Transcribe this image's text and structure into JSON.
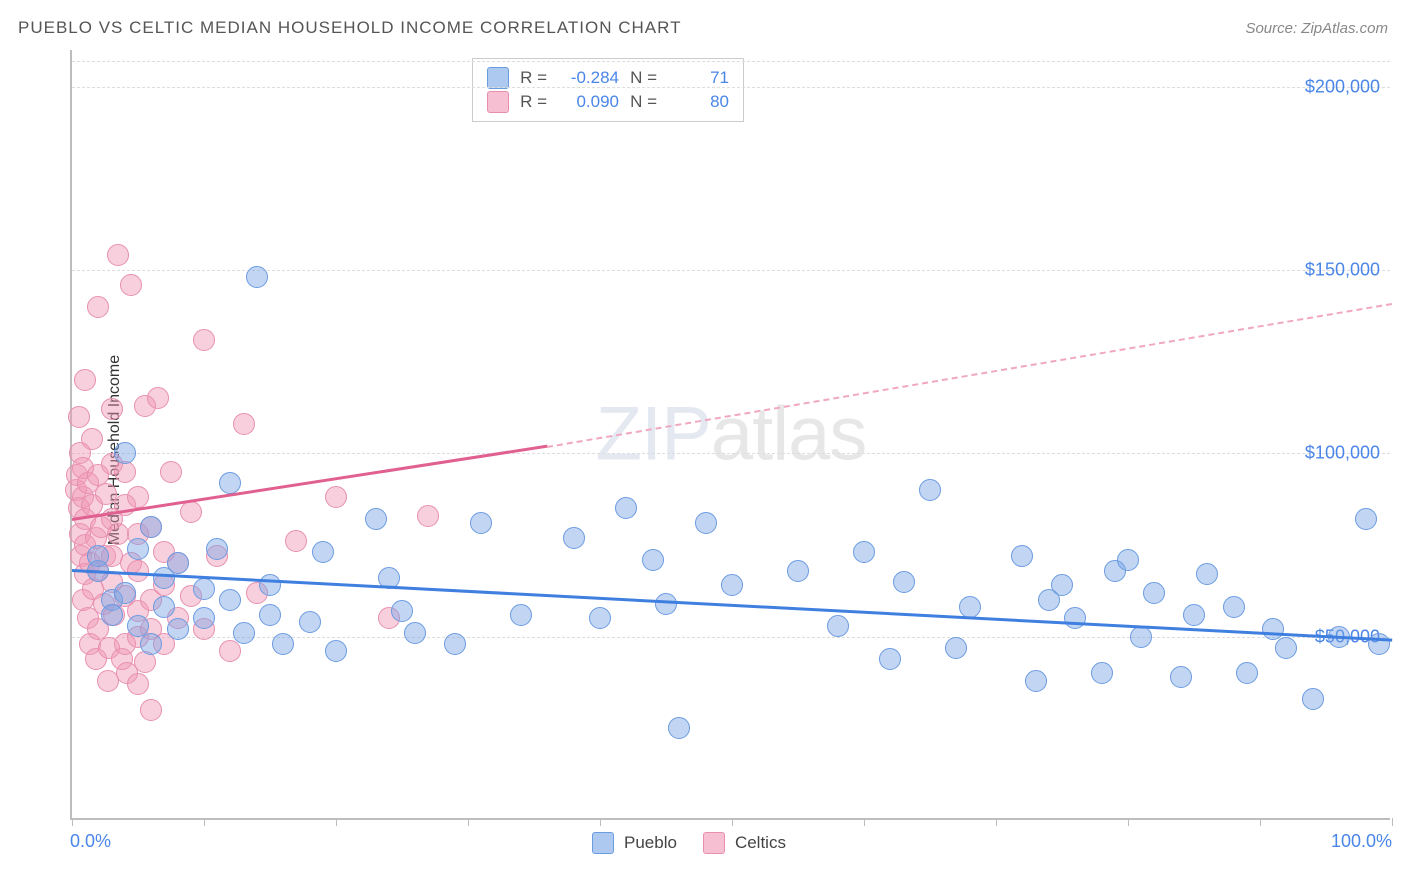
{
  "header": {
    "title": "PUEBLO VS CELTIC MEDIAN HOUSEHOLD INCOME CORRELATION CHART",
    "source": "Source: ZipAtlas.com"
  },
  "watermark": {
    "part1": "ZIP",
    "part2": "atlas"
  },
  "chart": {
    "type": "scatter",
    "ylabel": "Median Household Income",
    "background_color": "#ffffff",
    "grid_color": "#dddddd",
    "axis_color": "#bdbdbd",
    "xlim": [
      0,
      100
    ],
    "ylim": [
      0,
      210000
    ],
    "yticks": [
      50000,
      100000,
      150000,
      200000
    ],
    "ytick_labels": [
      "$50,000",
      "$100,000",
      "$150,000",
      "$200,000"
    ],
    "xtick_positions": [
      0,
      10,
      20,
      30,
      40,
      50,
      60,
      70,
      80,
      90,
      100
    ],
    "x_start_label": "0.0%",
    "x_end_label": "100.0%",
    "tick_label_color": "#4a86e8",
    "point_radius": 11,
    "point_border_width": 1,
    "series": {
      "pueblo": {
        "label": "Pueblo",
        "fill": "rgba(120,165,230,0.45)",
        "stroke": "#6b9be0",
        "R": "-0.284",
        "N": "71",
        "trend": {
          "x1": 0,
          "y1": 68000,
          "x2": 100,
          "y2": 49000,
          "color": "#3f7fe0",
          "width": 3,
          "dash": false
        },
        "points": [
          [
            2,
            68000
          ],
          [
            2,
            72000
          ],
          [
            3,
            60000
          ],
          [
            3,
            56000
          ],
          [
            4,
            100000
          ],
          [
            4,
            62000
          ],
          [
            5,
            74000
          ],
          [
            5,
            53000
          ],
          [
            6,
            48000
          ],
          [
            6,
            80000
          ],
          [
            7,
            58000
          ],
          [
            7,
            66000
          ],
          [
            8,
            52000
          ],
          [
            8,
            70000
          ],
          [
            10,
            63000
          ],
          [
            10,
            55000
          ],
          [
            11,
            74000
          ],
          [
            12,
            92000
          ],
          [
            12,
            60000
          ],
          [
            13,
            51000
          ],
          [
            14,
            148000
          ],
          [
            15,
            56000
          ],
          [
            15,
            64000
          ],
          [
            16,
            48000
          ],
          [
            18,
            54000
          ],
          [
            19,
            73000
          ],
          [
            20,
            46000
          ],
          [
            23,
            82000
          ],
          [
            24,
            66000
          ],
          [
            25,
            57000
          ],
          [
            26,
            51000
          ],
          [
            29,
            48000
          ],
          [
            31,
            81000
          ],
          [
            34,
            56000
          ],
          [
            38,
            77000
          ],
          [
            40,
            55000
          ],
          [
            42,
            85000
          ],
          [
            44,
            71000
          ],
          [
            45,
            59000
          ],
          [
            46,
            25000
          ],
          [
            48,
            81000
          ],
          [
            50,
            64000
          ],
          [
            55,
            68000
          ],
          [
            58,
            53000
          ],
          [
            60,
            73000
          ],
          [
            62,
            44000
          ],
          [
            63,
            65000
          ],
          [
            65,
            90000
          ],
          [
            67,
            47000
          ],
          [
            68,
            58000
          ],
          [
            72,
            72000
          ],
          [
            73,
            38000
          ],
          [
            74,
            60000
          ],
          [
            75,
            64000
          ],
          [
            76,
            55000
          ],
          [
            78,
            40000
          ],
          [
            79,
            68000
          ],
          [
            80,
            71000
          ],
          [
            81,
            50000
          ],
          [
            82,
            62000
          ],
          [
            84,
            39000
          ],
          [
            85,
            56000
          ],
          [
            86,
            67000
          ],
          [
            88,
            58000
          ],
          [
            89,
            40000
          ],
          [
            91,
            52000
          ],
          [
            92,
            47000
          ],
          [
            94,
            33000
          ],
          [
            96,
            50000
          ],
          [
            98,
            82000
          ],
          [
            99,
            48000
          ]
        ]
      },
      "celtics": {
        "label": "Celtics",
        "fill": "rgba(240,150,180,0.45)",
        "stroke": "#e88fb0",
        "R": "0.090",
        "N": "80",
        "trend_solid": {
          "x1": 0,
          "y1": 82000,
          "x2": 36,
          "y2": 102000,
          "color": "#e06090",
          "width": 3
        },
        "trend_dash": {
          "x1": 36,
          "y1": 102000,
          "x2": 100,
          "y2": 141000,
          "color": "#f0a8c0",
          "width": 2.5
        },
        "points": [
          [
            0.3,
            90000
          ],
          [
            0.4,
            94000
          ],
          [
            0.5,
            85000
          ],
          [
            0.5,
            110000
          ],
          [
            0.6,
            78000
          ],
          [
            0.6,
            100000
          ],
          [
            0.7,
            72000
          ],
          [
            0.8,
            88000
          ],
          [
            0.8,
            96000
          ],
          [
            0.8,
            60000
          ],
          [
            1,
            67000
          ],
          [
            1,
            75000
          ],
          [
            1,
            82000
          ],
          [
            1,
            120000
          ],
          [
            1.2,
            55000
          ],
          [
            1.2,
            92000
          ],
          [
            1.4,
            70000
          ],
          [
            1.4,
            48000
          ],
          [
            1.5,
            86000
          ],
          [
            1.5,
            104000
          ],
          [
            1.6,
            63000
          ],
          [
            1.8,
            77000
          ],
          [
            1.8,
            44000
          ],
          [
            2,
            94000
          ],
          [
            2,
            68000
          ],
          [
            2,
            52000
          ],
          [
            2,
            140000
          ],
          [
            2.2,
            80000
          ],
          [
            2.4,
            59000
          ],
          [
            2.5,
            72000
          ],
          [
            2.6,
            89000
          ],
          [
            2.7,
            38000
          ],
          [
            2.8,
            47000
          ],
          [
            3,
            97000
          ],
          [
            3,
            65000
          ],
          [
            3,
            72000
          ],
          [
            3,
            82000
          ],
          [
            3,
            112000
          ],
          [
            3.2,
            56000
          ],
          [
            3.5,
            154000
          ],
          [
            3.5,
            78000
          ],
          [
            3.8,
            44000
          ],
          [
            4,
            86000
          ],
          [
            4,
            61000
          ],
          [
            4,
            48000
          ],
          [
            4,
            95000
          ],
          [
            4.2,
            40000
          ],
          [
            4.5,
            70000
          ],
          [
            4.5,
            146000
          ],
          [
            5,
            57000
          ],
          [
            5,
            78000
          ],
          [
            5,
            37000
          ],
          [
            5,
            68000
          ],
          [
            5,
            50000
          ],
          [
            5,
            88000
          ],
          [
            5.5,
            113000
          ],
          [
            5.5,
            43000
          ],
          [
            6,
            80000
          ],
          [
            6,
            60000
          ],
          [
            6,
            30000
          ],
          [
            6,
            52000
          ],
          [
            6.5,
            115000
          ],
          [
            7,
            73000
          ],
          [
            7,
            48000
          ],
          [
            7,
            64000
          ],
          [
            7.5,
            95000
          ],
          [
            8,
            55000
          ],
          [
            8,
            70000
          ],
          [
            9,
            61000
          ],
          [
            9,
            84000
          ],
          [
            10,
            52000
          ],
          [
            10,
            131000
          ],
          [
            11,
            72000
          ],
          [
            12,
            46000
          ],
          [
            13,
            108000
          ],
          [
            14,
            62000
          ],
          [
            17,
            76000
          ],
          [
            20,
            88000
          ],
          [
            24,
            55000
          ],
          [
            27,
            83000
          ]
        ]
      }
    },
    "legend_swatch": {
      "pueblo": {
        "fill": "rgba(120,165,230,0.6)",
        "border": "#6b9be0"
      },
      "celtics": {
        "fill": "rgba(240,150,180,0.6)",
        "border": "#e88fb0"
      }
    }
  }
}
